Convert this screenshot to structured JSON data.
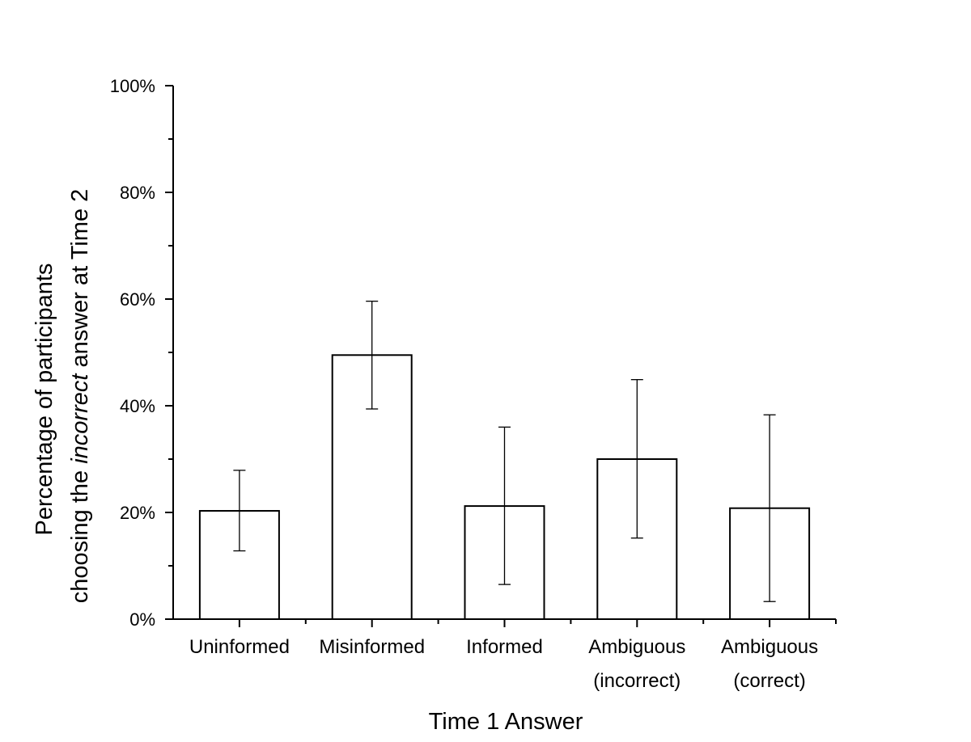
{
  "chart_data": {
    "type": "bar",
    "categories": [
      [
        "Uninformed"
      ],
      [
        "Misinformed"
      ],
      [
        "Informed"
      ],
      [
        "Ambiguous",
        "(incorrect)"
      ],
      [
        "Ambiguous",
        "(correct)"
      ]
    ],
    "values": [
      20.3,
      49.5,
      21.2,
      30.0,
      20.8
    ],
    "error_low": [
      12.8,
      39.4,
      6.5,
      15.2,
      3.3
    ],
    "error_high": [
      27.9,
      59.6,
      36.0,
      44.9,
      38.3
    ],
    "xlabel": "Time 1 Answer",
    "ylabel": {
      "line1": "Percentage of participants",
      "line2_before": "choosing the ",
      "line2_italic": "incorrect",
      "line2_after": " answer at Time 2"
    },
    "ylim": [
      0,
      100
    ],
    "yticks": [
      0,
      20,
      40,
      60,
      80,
      100
    ],
    "ytick_labels": [
      "0%",
      "20%",
      "40%",
      "60%",
      "80%",
      "100%"
    ],
    "grid": false,
    "legend": "none",
    "bar_fill": "#ffffff",
    "bar_stroke": "#000000"
  }
}
